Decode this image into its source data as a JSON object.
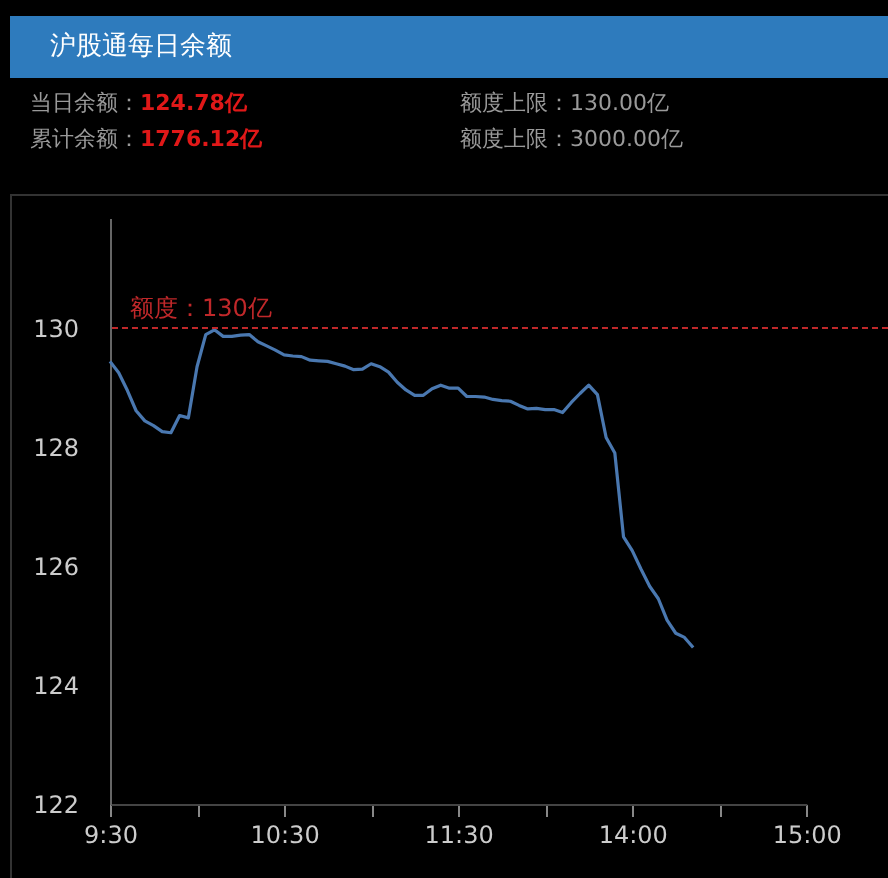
{
  "chart_data": {
    "type": "line",
    "title": "沪股通每日余额",
    "annotations": [
      "当日余额：124.78亿",
      "额度上限：130.00亿",
      "累计余额：1776.12亿",
      "额度上限：3000.00亿"
    ],
    "categories": [
      "9:30",
      null,
      null,
      null,
      null,
      null,
      null,
      null,
      null,
      null,
      null,
      null,
      null,
      null,
      null,
      null,
      null,
      null,
      null,
      null,
      "10:30",
      null,
      null,
      null,
      null,
      null,
      null,
      null,
      null,
      null,
      null,
      null,
      null,
      null,
      null,
      null,
      null,
      null,
      null,
      null,
      "11:30",
      null,
      null,
      null,
      null,
      null,
      null,
      null,
      null,
      null,
      null,
      null,
      null,
      null,
      null,
      null,
      null,
      null,
      null,
      null,
      "14:00",
      null,
      null,
      null,
      null,
      null,
      null,
      null,
      null,
      null,
      null,
      null,
      null,
      null,
      null,
      null,
      null,
      null,
      null,
      null,
      "15:00"
    ],
    "series": [
      {
        "color": "#4a78b0",
        "values": [
          129.44,
          129.25,
          128.95,
          128.61,
          128.44,
          128.36,
          128.26,
          128.24,
          128.53,
          128.49,
          129.35,
          129.89,
          129.97,
          129.86,
          129.86,
          129.88,
          129.89,
          129.77,
          129.7,
          129.63,
          129.55,
          129.53,
          129.52,
          129.46,
          129.45,
          129.44,
          129.4,
          129.36,
          129.3,
          129.31,
          129.4,
          129.35,
          129.26,
          129.09,
          128.96,
          128.87,
          128.87,
          128.98,
          129.04,
          128.99,
          128.99,
          128.85,
          128.85,
          128.84,
          128.8,
          128.78,
          128.77,
          128.7,
          128.64,
          128.65,
          128.63,
          128.63,
          128.58,
          128.75,
          128.9,
          129.04,
          128.88,
          128.16,
          127.9,
          126.49,
          126.26,
          125.95,
          125.66,
          125.45,
          125.09,
          124.87,
          124.8,
          124.63,
          null,
          null,
          null,
          null,
          null,
          null,
          null,
          null,
          null,
          null,
          null,
          null,
          null
        ]
      }
    ],
    "ylim": [
      122,
      131.85
    ],
    "yticks": [
      122,
      124,
      126,
      128,
      130
    ],
    "ref_lines": [
      {
        "axis": "y",
        "value": 130,
        "label": "额度：130亿",
        "color": "#c0282a",
        "line_style": "dashed"
      }
    ]
  }
}
